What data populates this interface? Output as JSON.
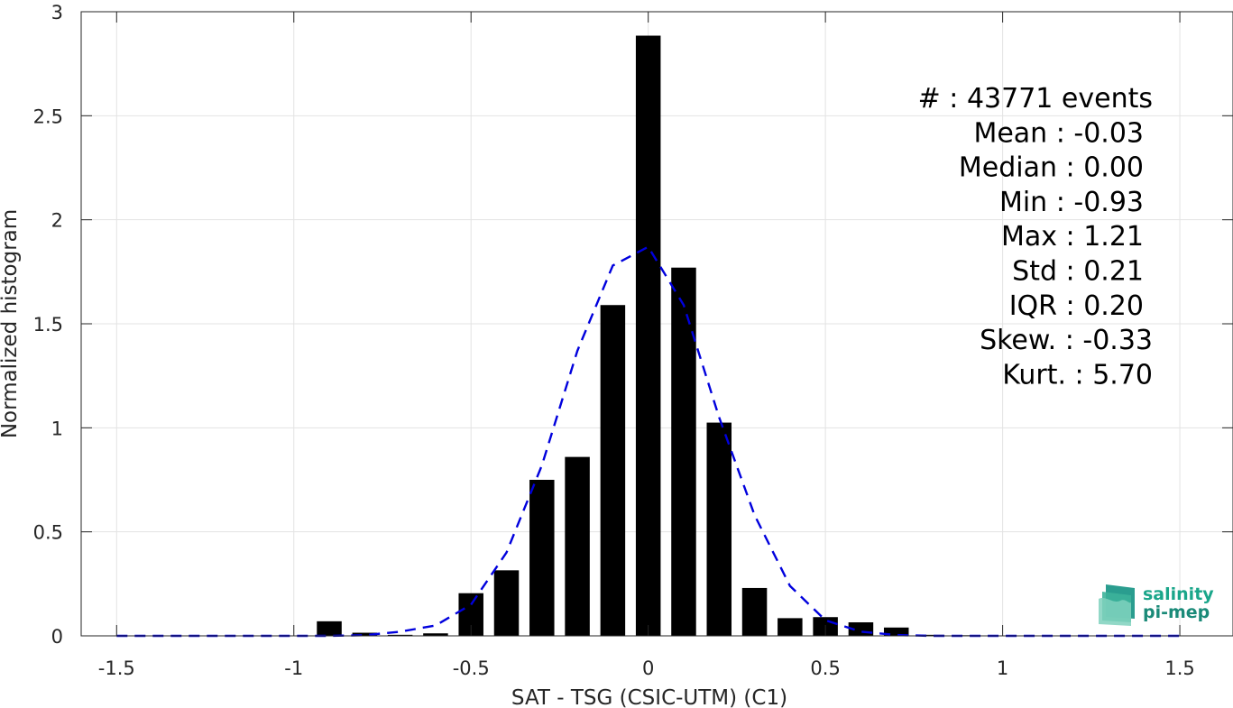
{
  "chart_data": {
    "type": "bar",
    "xlabel": "SAT - TSG (CSIC-UTM) (C1)",
    "ylabel": "Normalized histogram",
    "xlim": [
      -1.6,
      1.65
    ],
    "ylim": [
      0,
      3
    ],
    "xticks": [
      -1.5,
      -1,
      -0.5,
      0,
      0.5,
      1,
      1.5
    ],
    "xtick_labels": [
      "-1.5",
      "-1",
      "-0.5",
      "0",
      "0.5",
      "1",
      "1.5"
    ],
    "yticks": [
      0,
      0.5,
      1,
      1.5,
      2,
      2.5,
      3
    ],
    "ytick_labels": [
      "0",
      "0.5",
      "1",
      "1.5",
      "2",
      "2.5",
      "3"
    ],
    "grid": true,
    "bar_color": "#000000",
    "bins": {
      "x": [
        -0.9,
        -0.8,
        -0.7,
        -0.6,
        -0.5,
        -0.4,
        -0.3,
        -0.2,
        -0.1,
        0.0,
        0.1,
        0.2,
        0.3,
        0.4,
        0.5,
        0.6,
        0.7,
        0.8,
        0.9,
        1.0,
        1.1
      ],
      "values": [
        0.07,
        0.015,
        0.005,
        0.012,
        0.205,
        0.315,
        0.75,
        0.86,
        1.59,
        2.885,
        1.77,
        1.025,
        0.23,
        0.085,
        0.09,
        0.065,
        0.04,
        0.005,
        0.003,
        0.002,
        0.002
      ]
    },
    "fit_curve": {
      "name": "Gaussian fit",
      "color": "#0000dd",
      "style": "dashed",
      "x": [
        -1.5,
        -1.4,
        -1.3,
        -1.2,
        -1.1,
        -1.0,
        -0.9,
        -0.8,
        -0.7,
        -0.6,
        -0.5,
        -0.4,
        -0.3,
        -0.2,
        -0.1,
        0.0,
        0.1,
        0.2,
        0.3,
        0.4,
        0.5,
        0.6,
        0.7,
        0.8,
        0.9,
        1.0,
        1.1,
        1.2,
        1.3,
        1.4,
        1.5
      ],
      "y": [
        0.0,
        0.0,
        0.0,
        0.0,
        0.0,
        0.0,
        0.0,
        0.003,
        0.02,
        0.05,
        0.15,
        0.4,
        0.82,
        1.37,
        1.78,
        1.87,
        1.59,
        1.05,
        0.58,
        0.24,
        0.075,
        0.02,
        0.004,
        0.0,
        0.0,
        0.0,
        0.0,
        0.0,
        0.0,
        0.0,
        0.0
      ]
    },
    "annotations": [
      "#  : 43771 events",
      "Mean : -0.03",
      "Median : 0.00",
      "Min : -0.93",
      "Max : 1.21",
      "Std : 0.21",
      "IQR : 0.20",
      "Skew. : -0.33",
      "Kurt. : 5.70"
    ]
  },
  "logo": {
    "line1": "salinity",
    "line2": "pi-mep",
    "color": "#1aa68a"
  }
}
